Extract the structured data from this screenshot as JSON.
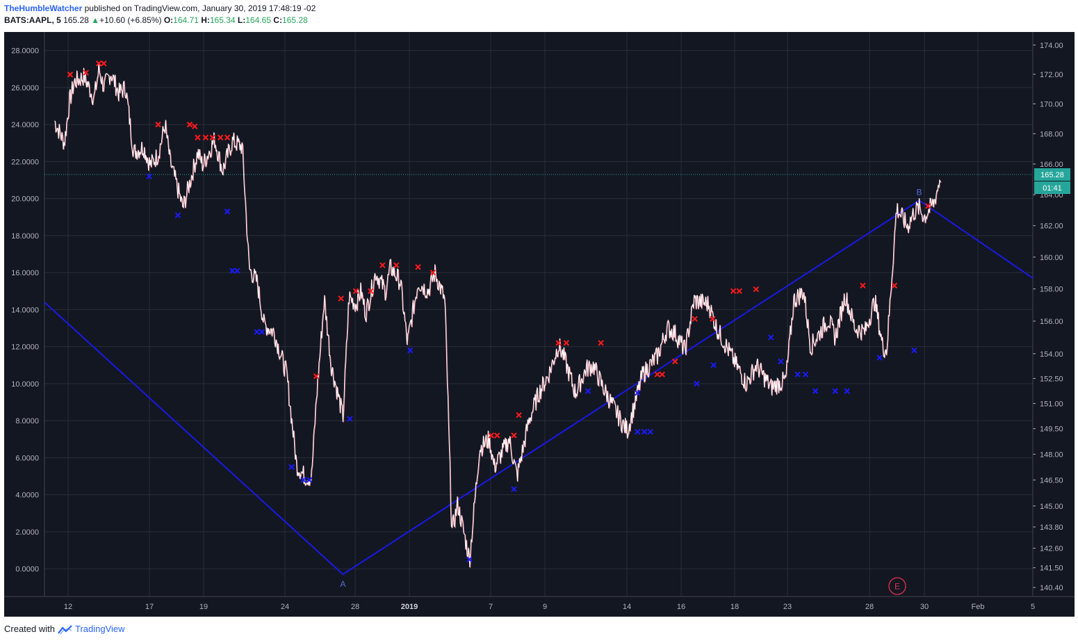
{
  "header": {
    "author": "TheHumbleWatcher",
    "published": "published on TradingView.com, January 30, 2019 17:48:19 -02",
    "symbol": "BATS:AAPL, 5",
    "last": "165.28",
    "change": "+10.60 (+6.85%)",
    "open_label": "O:",
    "open": "164.71",
    "high_label": "H:",
    "high": "165.34",
    "low_label": "L:",
    "low": "164.65",
    "close_label": "C:",
    "close": "165.28"
  },
  "footer": {
    "created_with": "Created with",
    "brand": "TradingView"
  },
  "colors": {
    "background": "#131722",
    "grid": "#2a2e39",
    "price": "#ffffff",
    "price_shadow": "#e07a8a",
    "pattern_line": "#1919e6",
    "sell_marker": "#ff1a1a",
    "buy_marker": "#1a1aff",
    "price_line": "#26a69a",
    "axis_text": "#b2b5be",
    "circle_label": "#e0324b"
  },
  "chart_data": {
    "type": "line",
    "x_tick_labels": [
      "12",
      "17",
      "19",
      "24",
      "28",
      "2019",
      "7",
      "9",
      "14",
      "16",
      "18",
      "23",
      "28",
      "30",
      "Feb",
      "5"
    ],
    "left_axis": {
      "ticks": [
        "28.0000",
        "26.0000",
        "24.0000",
        "22.0000",
        "20.0000",
        "18.0000",
        "16.0000",
        "14.0000",
        "12.0000",
        "10.0000",
        "8.0000",
        "6.0000",
        "4.0000",
        "2.0000",
        "0.0000"
      ],
      "range": [
        -1.5,
        29.0
      ]
    },
    "right_axis": {
      "ticks": [
        "174.00",
        "172.00",
        "170.00",
        "168.00",
        "166.00",
        "164.00",
        "162.00",
        "160.00",
        "158.00",
        "156.00",
        "154.00",
        "152.50",
        "151.00",
        "149.50",
        "148.00",
        "146.50",
        "145.00",
        "143.80",
        "142.60",
        "141.50",
        "140.40"
      ],
      "scale": "log"
    },
    "last_price": "165.28",
    "countdown": "01:41",
    "pattern_labels": [
      "A",
      "B"
    ],
    "wave_label": "E",
    "pattern_line": [
      {
        "x": 0,
        "y": 14.4
      },
      {
        "x": 0.302,
        "y": -0.3
      },
      {
        "x": 0.885,
        "y": 19.9
      },
      {
        "x": 1.0,
        "y": 15.7
      }
    ],
    "price_series": {
      "x": [
        0.01,
        0.02,
        0.025,
        0.03,
        0.04,
        0.05,
        0.055,
        0.06,
        0.067,
        0.075,
        0.082,
        0.09,
        0.1,
        0.107,
        0.115,
        0.122,
        0.127,
        0.14,
        0.155,
        0.16,
        0.172,
        0.18,
        0.19,
        0.2,
        0.207,
        0.215,
        0.222,
        0.232,
        0.245,
        0.255,
        0.263,
        0.27,
        0.275,
        0.283,
        0.29,
        0.302,
        0.308,
        0.315,
        0.32,
        0.325,
        0.335,
        0.345,
        0.35,
        0.36,
        0.367,
        0.378,
        0.388,
        0.395,
        0.405,
        0.412,
        0.418,
        0.43,
        0.44,
        0.45,
        0.455,
        0.47,
        0.478,
        0.49,
        0.5,
        0.51,
        0.52,
        0.525,
        0.537,
        0.548,
        0.555,
        0.565,
        0.585,
        0.59,
        0.605,
        0.62,
        0.63,
        0.637,
        0.648,
        0.657,
        0.672,
        0.68,
        0.69,
        0.7,
        0.71,
        0.72,
        0.735,
        0.75,
        0.758,
        0.768,
        0.775,
        0.793,
        0.8,
        0.81,
        0.82,
        0.83,
        0.84,
        0.848,
        0.852,
        0.862,
        0.873,
        0.88,
        0.885,
        0.89,
        0.9,
        0.907
      ],
      "y": [
        24.2,
        23.0,
        25.2,
        26.3,
        26.6,
        25.4,
        27.0,
        26.0,
        26.8,
        25.7,
        26.0,
        22.5,
        22.8,
        21.8,
        22.4,
        24.0,
        22.0,
        19.5,
        22.5,
        21.8,
        23.2,
        21.5,
        23.1,
        22.8,
        16.2,
        15.5,
        13.2,
        12.8,
        10.5,
        5.6,
        5.0,
        4.9,
        9.2,
        14.6,
        11.0,
        8.2,
        14.7,
        14.3,
        15.0,
        13.8,
        16.0,
        15.0,
        16.3,
        15.5,
        12.2,
        15.5,
        15.0,
        16.0,
        14.5,
        2.0,
        3.5,
        0.5,
        6.5,
        7.0,
        5.5,
        7.0,
        5.0,
        8.0,
        9.5,
        10.5,
        12.1,
        11.5,
        9.5,
        10.8,
        11.0,
        9.8,
        7.8,
        7.5,
        10.5,
        11.5,
        13.0,
        12.8,
        11.8,
        14.5,
        14.3,
        13.0,
        12.0,
        11.0,
        10.0,
        11.0,
        9.8,
        10.2,
        14.5,
        15.0,
        12.0,
        13.5,
        12.5,
        14.8,
        13.0,
        12.8,
        14.5,
        12.0,
        11.8,
        19.5,
        18.5,
        19.3,
        19.5,
        19.0,
        19.8,
        21.3
      ]
    }
  }
}
